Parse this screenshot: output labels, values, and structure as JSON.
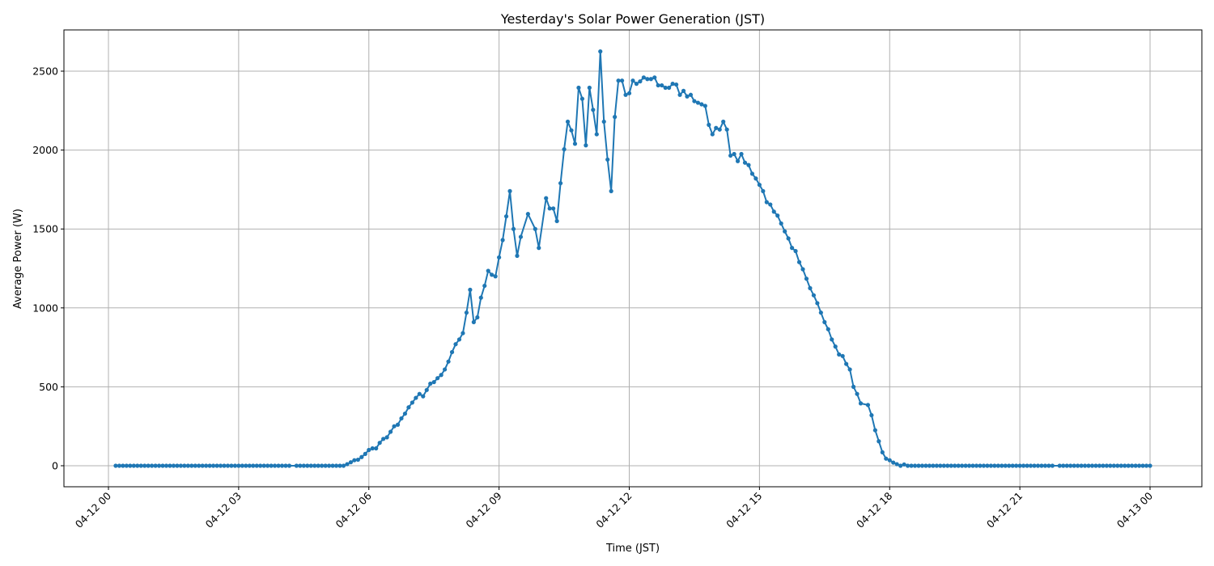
{
  "chart_data": {
    "type": "line",
    "title": "Yesterday's Solar Power Generation (JST)",
    "xlabel": "Time (JST)",
    "ylabel": "Average Power (W)",
    "x_ticks": [
      "04-12 00",
      "04-12 03",
      "04-12 06",
      "04-12 09",
      "04-12 12",
      "04-12 15",
      "04-12 18",
      "04-12 21",
      "04-13 00"
    ],
    "y_ticks": [
      0,
      500,
      1000,
      1500,
      2000,
      2500
    ],
    "xlim": [
      "04-11 22:58",
      "04-13 01:11"
    ],
    "ylim": [
      -133,
      2761
    ],
    "grid": true,
    "marker": "circle",
    "color": "#1f77b4",
    "points": [
      [
        "04-12 00:10",
        0
      ],
      [
        "04-12 00:15",
        0
      ],
      [
        "04-12 00:20",
        0
      ],
      [
        "04-12 00:25",
        0
      ],
      [
        "04-12 00:30",
        0
      ],
      [
        "04-12 00:35",
        0
      ],
      [
        "04-12 00:40",
        0
      ],
      [
        "04-12 00:45",
        0
      ],
      [
        "04-12 00:50",
        0
      ],
      [
        "04-12 00:55",
        0
      ],
      [
        "04-12 01:00",
        0
      ],
      [
        "04-12 01:05",
        0
      ],
      [
        "04-12 01:10",
        0
      ],
      [
        "04-12 01:15",
        0
      ],
      [
        "04-12 01:20",
        0
      ],
      [
        "04-12 01:25",
        0
      ],
      [
        "04-12 01:30",
        0
      ],
      [
        "04-12 01:35",
        0
      ],
      [
        "04-12 01:40",
        0
      ],
      [
        "04-12 01:45",
        0
      ],
      [
        "04-12 01:50",
        0
      ],
      [
        "04-12 01:55",
        0
      ],
      [
        "04-12 02:00",
        0
      ],
      [
        "04-12 02:05",
        0
      ],
      [
        "04-12 02:10",
        0
      ],
      [
        "04-12 02:15",
        0
      ],
      [
        "04-12 02:20",
        0
      ],
      [
        "04-12 02:25",
        0
      ],
      [
        "04-12 02:30",
        0
      ],
      [
        "04-12 02:35",
        0
      ],
      [
        "04-12 02:40",
        0
      ],
      [
        "04-12 02:45",
        0
      ],
      [
        "04-12 02:50",
        0
      ],
      [
        "04-12 02:55",
        0
      ],
      [
        "04-12 03:00",
        0
      ],
      [
        "04-12 03:05",
        0
      ],
      [
        "04-12 03:10",
        0
      ],
      [
        "04-12 03:15",
        0
      ],
      [
        "04-12 03:20",
        0
      ],
      [
        "04-12 03:25",
        0
      ],
      [
        "04-12 03:30",
        0
      ],
      [
        "04-12 03:35",
        0
      ],
      [
        "04-12 03:40",
        0
      ],
      [
        "04-12 03:45",
        0
      ],
      [
        "04-12 03:50",
        0
      ],
      [
        "04-12 03:55",
        0
      ],
      [
        "04-12 04:00",
        0
      ],
      [
        "04-12 04:05",
        0
      ],
      [
        "04-12 04:10",
        0
      ],
      [
        "04-12 04:20",
        0
      ],
      [
        "04-12 04:25",
        0
      ],
      [
        "04-12 04:30",
        0
      ],
      [
        "04-12 04:35",
        0
      ],
      [
        "04-12 04:40",
        0
      ],
      [
        "04-12 04:45",
        0
      ],
      [
        "04-12 04:50",
        0
      ],
      [
        "04-12 04:55",
        0
      ],
      [
        "04-12 05:00",
        0
      ],
      [
        "04-12 05:05",
        0
      ],
      [
        "04-12 05:10",
        0
      ],
      [
        "04-12 05:15",
        0
      ],
      [
        "04-12 05:20",
        0
      ],
      [
        "04-12 05:25",
        0
      ],
      [
        "04-12 05:30",
        10
      ],
      [
        "04-12 05:35",
        22
      ],
      [
        "04-12 05:40",
        35
      ],
      [
        "04-12 05:45",
        38
      ],
      [
        "04-12 05:50",
        55
      ],
      [
        "04-12 05:55",
        75
      ],
      [
        "04-12 06:00",
        100
      ],
      [
        "04-12 06:05",
        110
      ],
      [
        "04-12 06:10",
        110
      ],
      [
        "04-12 06:15",
        145
      ],
      [
        "04-12 06:20",
        170
      ],
      [
        "04-12 06:25",
        180
      ],
      [
        "04-12 06:30",
        215
      ],
      [
        "04-12 06:35",
        250
      ],
      [
        "04-12 06:40",
        260
      ],
      [
        "04-12 06:45",
        300
      ],
      [
        "04-12 06:50",
        330
      ],
      [
        "04-12 06:55",
        370
      ],
      [
        "04-12 07:00",
        400
      ],
      [
        "04-12 07:05",
        430
      ],
      [
        "04-12 07:10",
        455
      ],
      [
        "04-12 07:15",
        440
      ],
      [
        "04-12 07:20",
        480
      ],
      [
        "04-12 07:25",
        520
      ],
      [
        "04-12 07:30",
        530
      ],
      [
        "04-12 07:35",
        555
      ],
      [
        "04-12 07:40",
        575
      ],
      [
        "04-12 07:45",
        610
      ],
      [
        "04-12 07:50",
        660
      ],
      [
        "04-12 07:55",
        720
      ],
      [
        "04-12 08:00",
        770
      ],
      [
        "04-12 08:05",
        800
      ],
      [
        "04-12 08:10",
        840
      ],
      [
        "04-12 08:15",
        970
      ],
      [
        "04-12 08:20",
        1115
      ],
      [
        "04-12 08:25",
        910
      ],
      [
        "04-12 08:30",
        940
      ],
      [
        "04-12 08:35",
        1065
      ],
      [
        "04-12 08:40",
        1140
      ],
      [
        "04-12 08:45",
        1235
      ],
      [
        "04-12 08:50",
        1210
      ],
      [
        "04-12 08:55",
        1200
      ],
      [
        "04-12 09:00",
        1320
      ],
      [
        "04-12 09:05",
        1430
      ],
      [
        "04-12 09:10",
        1580
      ],
      [
        "04-12 09:15",
        1740
      ],
      [
        "04-12 09:20",
        1500
      ],
      [
        "04-12 09:25",
        1330
      ],
      [
        "04-12 09:30",
        1450
      ],
      [
        "04-12 09:40",
        1595
      ],
      [
        "04-12 09:50",
        1500
      ],
      [
        "04-12 09:55",
        1380
      ],
      [
        "04-12 10:05",
        1695
      ],
      [
        "04-12 10:10",
        1630
      ],
      [
        "04-12 10:15",
        1630
      ],
      [
        "04-12 10:20",
        1550
      ],
      [
        "04-12 10:25",
        1790
      ],
      [
        "04-12 10:30",
        2005
      ],
      [
        "04-12 10:35",
        2180
      ],
      [
        "04-12 10:40",
        2125
      ],
      [
        "04-12 10:45",
        2040
      ],
      [
        "04-12 10:50",
        2395
      ],
      [
        "04-12 10:55",
        2325
      ],
      [
        "04-12 11:00",
        2030
      ],
      [
        "04-12 11:05",
        2395
      ],
      [
        "04-12 11:10",
        2255
      ],
      [
        "04-12 11:15",
        2100
      ],
      [
        "04-12 11:20",
        2625
      ],
      [
        "04-12 11:25",
        2180
      ],
      [
        "04-12 11:30",
        1940
      ],
      [
        "04-12 11:35",
        1740
      ],
      [
        "04-12 11:40",
        2210
      ],
      [
        "04-12 11:45",
        2440
      ],
      [
        "04-12 11:50",
        2440
      ],
      [
        "04-12 11:55",
        2350
      ],
      [
        "04-12 12:00",
        2360
      ],
      [
        "04-12 12:05",
        2440
      ],
      [
        "04-12 12:10",
        2420
      ],
      [
        "04-12 12:15",
        2435
      ],
      [
        "04-12 12:20",
        2460
      ],
      [
        "04-12 12:25",
        2450
      ],
      [
        "04-12 12:30",
        2450
      ],
      [
        "04-12 12:35",
        2460
      ],
      [
        "04-12 12:40",
        2410
      ],
      [
        "04-12 12:45",
        2410
      ],
      [
        "04-12 12:50",
        2395
      ],
      [
        "04-12 12:55",
        2395
      ],
      [
        "04-12 13:00",
        2420
      ],
      [
        "04-12 13:05",
        2415
      ],
      [
        "04-12 13:10",
        2350
      ],
      [
        "04-12 13:15",
        2375
      ],
      [
        "04-12 13:20",
        2340
      ],
      [
        "04-12 13:25",
        2350
      ],
      [
        "04-12 13:30",
        2310
      ],
      [
        "04-12 13:35",
        2300
      ],
      [
        "04-12 13:40",
        2290
      ],
      [
        "04-12 13:45",
        2280
      ],
      [
        "04-12 13:50",
        2160
      ],
      [
        "04-12 13:55",
        2100
      ],
      [
        "04-12 14:00",
        2140
      ],
      [
        "04-12 14:05",
        2130
      ],
      [
        "04-12 14:10",
        2180
      ],
      [
        "04-12 14:15",
        2130
      ],
      [
        "04-12 14:20",
        1965
      ],
      [
        "04-12 14:25",
        1975
      ],
      [
        "04-12 14:30",
        1930
      ],
      [
        "04-12 14:35",
        1975
      ],
      [
        "04-12 14:40",
        1920
      ],
      [
        "04-12 14:45",
        1905
      ],
      [
        "04-12 14:50",
        1850
      ],
      [
        "04-12 14:55",
        1820
      ],
      [
        "04-12 15:00",
        1780
      ],
      [
        "04-12 15:05",
        1740
      ],
      [
        "04-12 15:10",
        1670
      ],
      [
        "04-12 15:15",
        1655
      ],
      [
        "04-12 15:20",
        1610
      ],
      [
        "04-12 15:25",
        1585
      ],
      [
        "04-12 15:30",
        1535
      ],
      [
        "04-12 15:35",
        1485
      ],
      [
        "04-12 15:40",
        1440
      ],
      [
        "04-12 15:45",
        1380
      ],
      [
        "04-12 15:50",
        1360
      ],
      [
        "04-12 15:55",
        1290
      ],
      [
        "04-12 16:00",
        1245
      ],
      [
        "04-12 16:05",
        1185
      ],
      [
        "04-12 16:10",
        1125
      ],
      [
        "04-12 16:15",
        1080
      ],
      [
        "04-12 16:20",
        1030
      ],
      [
        "04-12 16:25",
        970
      ],
      [
        "04-12 16:30",
        910
      ],
      [
        "04-12 16:35",
        865
      ],
      [
        "04-12 16:40",
        800
      ],
      [
        "04-12 16:45",
        755
      ],
      [
        "04-12 16:50",
        705
      ],
      [
        "04-12 16:55",
        695
      ],
      [
        "04-12 17:00",
        645
      ],
      [
        "04-12 17:05",
        610
      ],
      [
        "04-12 17:10",
        500
      ],
      [
        "04-12 17:15",
        455
      ],
      [
        "04-12 17:20",
        395
      ],
      [
        "04-12 17:30",
        385
      ],
      [
        "04-12 17:35",
        320
      ],
      [
        "04-12 17:40",
        225
      ],
      [
        "04-12 17:45",
        155
      ],
      [
        "04-12 17:50",
        85
      ],
      [
        "04-12 17:55",
        45
      ],
      [
        "04-12 18:00",
        35
      ],
      [
        "04-12 18:05",
        20
      ],
      [
        "04-12 18:10",
        10
      ],
      [
        "04-12 18:15",
        0
      ],
      [
        "04-12 18:20",
        8
      ],
      [
        "04-12 18:25",
        0
      ],
      [
        "04-12 18:30",
        0
      ],
      [
        "04-12 18:35",
        0
      ],
      [
        "04-12 18:40",
        0
      ],
      [
        "04-12 18:45",
        0
      ],
      [
        "04-12 18:50",
        0
      ],
      [
        "04-12 18:55",
        0
      ],
      [
        "04-12 19:00",
        0
      ],
      [
        "04-12 19:05",
        0
      ],
      [
        "04-12 19:10",
        0
      ],
      [
        "04-12 19:15",
        0
      ],
      [
        "04-12 19:20",
        0
      ],
      [
        "04-12 19:25",
        0
      ],
      [
        "04-12 19:30",
        0
      ],
      [
        "04-12 19:35",
        0
      ],
      [
        "04-12 19:40",
        0
      ],
      [
        "04-12 19:45",
        0
      ],
      [
        "04-12 19:50",
        0
      ],
      [
        "04-12 19:55",
        0
      ],
      [
        "04-12 20:00",
        0
      ],
      [
        "04-12 20:05",
        0
      ],
      [
        "04-12 20:10",
        0
      ],
      [
        "04-12 20:15",
        0
      ],
      [
        "04-12 20:20",
        0
      ],
      [
        "04-12 20:25",
        0
      ],
      [
        "04-12 20:30",
        0
      ],
      [
        "04-12 20:35",
        0
      ],
      [
        "04-12 20:40",
        0
      ],
      [
        "04-12 20:45",
        0
      ],
      [
        "04-12 20:50",
        0
      ],
      [
        "04-12 20:55",
        0
      ],
      [
        "04-12 21:00",
        0
      ],
      [
        "04-12 21:05",
        0
      ],
      [
        "04-12 21:10",
        0
      ],
      [
        "04-12 21:15",
        0
      ],
      [
        "04-12 21:20",
        0
      ],
      [
        "04-12 21:25",
        0
      ],
      [
        "04-12 21:30",
        0
      ],
      [
        "04-12 21:35",
        0
      ],
      [
        "04-12 21:40",
        0
      ],
      [
        "04-12 21:45",
        0
      ],
      [
        "04-12 21:55",
        0
      ],
      [
        "04-12 22:00",
        0
      ],
      [
        "04-12 22:05",
        0
      ],
      [
        "04-12 22:10",
        0
      ],
      [
        "04-12 22:15",
        0
      ],
      [
        "04-12 22:20",
        0
      ],
      [
        "04-12 22:25",
        0
      ],
      [
        "04-12 22:30",
        0
      ],
      [
        "04-12 22:35",
        0
      ],
      [
        "04-12 22:40",
        0
      ],
      [
        "04-12 22:45",
        0
      ],
      [
        "04-12 22:50",
        0
      ],
      [
        "04-12 22:55",
        0
      ],
      [
        "04-12 23:00",
        0
      ],
      [
        "04-12 23:05",
        0
      ],
      [
        "04-12 23:10",
        0
      ],
      [
        "04-12 23:15",
        0
      ],
      [
        "04-12 23:20",
        0
      ],
      [
        "04-12 23:25",
        0
      ],
      [
        "04-12 23:30",
        0
      ],
      [
        "04-12 23:35",
        0
      ],
      [
        "04-12 23:40",
        0
      ],
      [
        "04-12 23:45",
        0
      ],
      [
        "04-12 23:50",
        0
      ],
      [
        "04-12 23:55",
        0
      ],
      [
        "04-13 00:00",
        0
      ]
    ]
  }
}
